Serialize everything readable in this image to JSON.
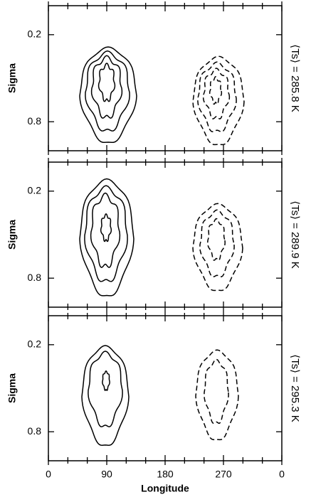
{
  "chart_data": [
    {
      "type": "contour",
      "annotation": "⟨Ts⟩ = 285.8 K",
      "ylabel": "Sigma",
      "xlim": [
        0,
        360
      ],
      "xticks": [
        0,
        90,
        180,
        270,
        {
          "value": 360,
          "label": "0"
        }
      ],
      "xminorticks": [
        30,
        60,
        120,
        150,
        210,
        240,
        300,
        330
      ],
      "ylim": [
        1.0,
        0.0
      ],
      "yticks": [
        0.2,
        0.8
      ]
    },
    {
      "type": "contour",
      "annotation": "⟨Ts⟩ = 289.9 K",
      "ylabel": "Sigma",
      "xlim": [
        0,
        360
      ],
      "xticks": [
        0,
        90,
        180,
        270,
        {
          "value": 360,
          "label": "0"
        }
      ],
      "xminorticks": [
        30,
        60,
        120,
        150,
        210,
        240,
        300,
        330
      ],
      "ylim": [
        1.0,
        0.0
      ],
      "yticks": [
        0.2,
        0.8
      ]
    },
    {
      "type": "contour",
      "annotation": "⟨Ts⟩ = 295.3 K",
      "ylabel": "Sigma",
      "xlabel": "Longitude",
      "xlim": [
        0,
        360
      ],
      "xticks": [
        0,
        90,
        180,
        270,
        {
          "value": 360,
          "label": "0"
        }
      ],
      "xminorticks": [
        30,
        60,
        120,
        150,
        210,
        240,
        300,
        330
      ],
      "ylim": [
        1.0,
        0.0
      ],
      "yticks": [
        0.2,
        0.8
      ]
    }
  ]
}
